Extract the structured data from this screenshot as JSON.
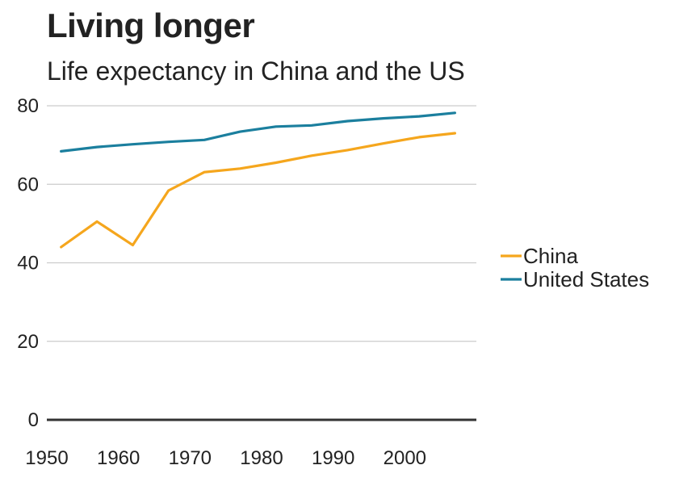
{
  "chart_data": {
    "type": "line",
    "title": "Living longer",
    "subtitle": "Life expectancy in China and the US",
    "xlabel": "",
    "ylabel": "",
    "xlim": [
      1950,
      2010
    ],
    "ylim": [
      0,
      80
    ],
    "xticks": [
      1950,
      1960,
      1970,
      1980,
      1990,
      2000
    ],
    "yticks": [
      0,
      20,
      40,
      60,
      80
    ],
    "grid": true,
    "legend_position": "right",
    "series": [
      {
        "name": "China",
        "color": "#F5A61D",
        "x": [
          1952,
          1957,
          1962,
          1967,
          1972,
          1977,
          1982,
          1987,
          1992,
          1997,
          2002,
          2007
        ],
        "values": [
          44.0,
          50.5,
          44.5,
          58.4,
          63.1,
          64.0,
          65.5,
          67.3,
          68.7,
          70.4,
          72.0,
          73.0
        ]
      },
      {
        "name": "United States",
        "color": "#1B7F9E",
        "x": [
          1952,
          1957,
          1962,
          1967,
          1972,
          1977,
          1982,
          1987,
          1992,
          1997,
          2002,
          2007
        ],
        "values": [
          68.4,
          69.5,
          70.2,
          70.8,
          71.3,
          73.4,
          74.7,
          75.0,
          76.1,
          76.8,
          77.3,
          78.2
        ]
      }
    ]
  }
}
